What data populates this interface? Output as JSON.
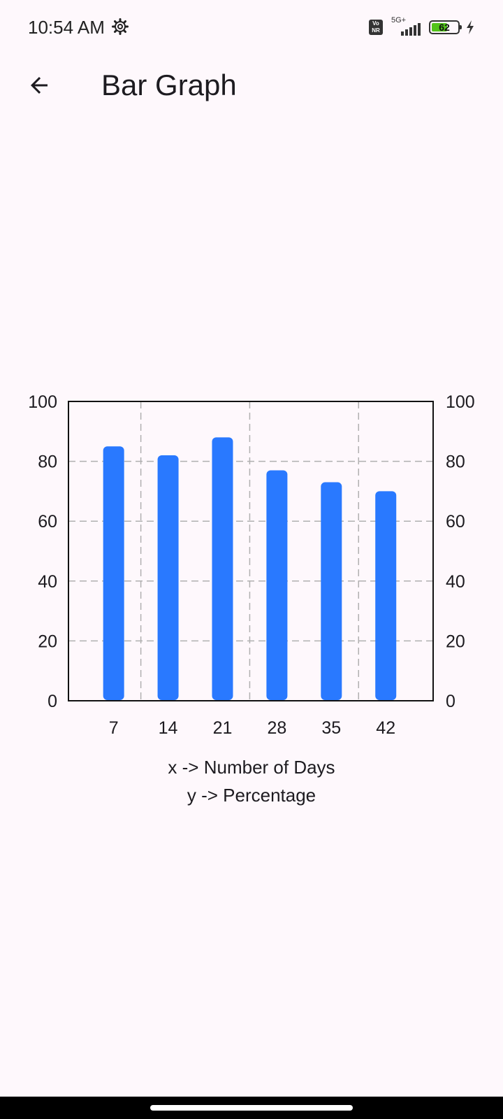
{
  "status_bar": {
    "time": "10:54 AM",
    "volte": "Vo NR",
    "network": "5G+",
    "battery": "62",
    "battery_level": 0.62,
    "icons": [
      "settings-gear-icon",
      "volte-icon",
      "signal-icon",
      "battery-icon",
      "charging-icon"
    ]
  },
  "app_bar": {
    "back_icon": "arrow-back-icon",
    "title": "Bar Graph"
  },
  "chart_data": {
    "type": "bar",
    "categories": [
      "7",
      "14",
      "21",
      "28",
      "35",
      "42"
    ],
    "values": [
      85,
      82,
      88,
      77,
      73,
      70
    ],
    "ylim": [
      0,
      100
    ],
    "yticks": [
      0,
      20,
      40,
      60,
      80,
      100
    ],
    "grid": true,
    "right_axis": true,
    "bar_color": "#2979ff",
    "xlabel": "x -> Number of Days",
    "ylabel": "y -> Percentage"
  }
}
